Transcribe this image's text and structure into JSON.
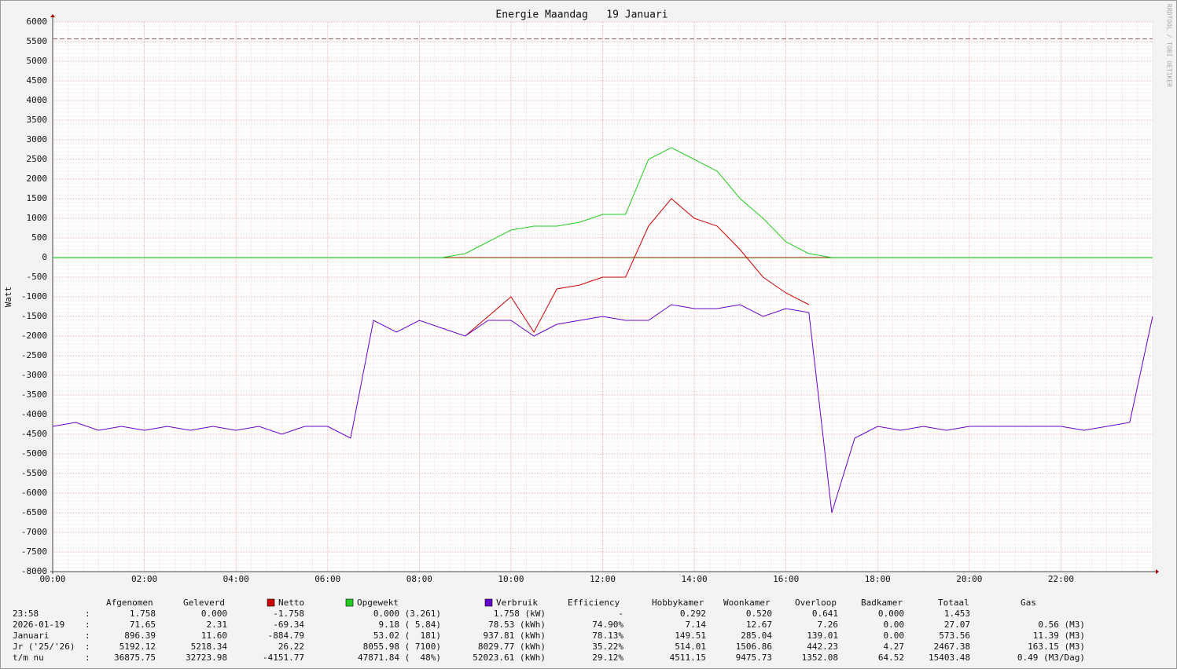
{
  "chart_data": {
    "type": "line",
    "title": "Energie Maandag   19 Januari",
    "ylabel": "Watt",
    "watermark": "RRDTOOL / TOBI OETIKER",
    "x": [
      "00:00",
      "00:30",
      "01:00",
      "01:30",
      "02:00",
      "02:30",
      "03:00",
      "03:30",
      "04:00",
      "04:30",
      "05:00",
      "05:30",
      "06:00",
      "06:30",
      "07:00",
      "07:30",
      "08:00",
      "08:30",
      "09:00",
      "09:30",
      "10:00",
      "10:30",
      "11:00",
      "11:30",
      "12:00",
      "12:30",
      "13:00",
      "13:30",
      "14:00",
      "14:30",
      "15:00",
      "15:30",
      "16:00",
      "16:30",
      "17:00",
      "17:30",
      "18:00",
      "18:30",
      "19:00",
      "19:30",
      "20:00",
      "20:30",
      "21:00",
      "21:30",
      "22:00",
      "22:30",
      "23:00",
      "23:30",
      "24:00"
    ],
    "xlim": [
      "00:00",
      "24:00"
    ],
    "xticks": [
      "00:00",
      "02:00",
      "04:00",
      "06:00",
      "08:00",
      "10:00",
      "12:00",
      "14:00",
      "16:00",
      "18:00",
      "20:00",
      "22:00"
    ],
    "minor_x_minutes": 20,
    "ylim": [
      -8000,
      6000
    ],
    "yticks": [
      -8000,
      -7500,
      -7000,
      -6500,
      -6000,
      -5500,
      -5000,
      -4500,
      -4000,
      -3500,
      -3000,
      -2500,
      -2000,
      -1500,
      -1000,
      -500,
      0,
      500,
      1000,
      1500,
      2000,
      2500,
      3000,
      3500,
      4000,
      4500,
      5000,
      5500,
      6000
    ],
    "minor_ystep": 100,
    "grid": true,
    "hlines": [
      {
        "value": 5570,
        "color": "#a06060"
      }
    ],
    "series": [
      {
        "name": "Opgewekt",
        "color": "#22cc22",
        "values": [
          0,
          0,
          0,
          0,
          0,
          0,
          0,
          0,
          0,
          0,
          0,
          0,
          0,
          0,
          0,
          0,
          0,
          0,
          100,
          400,
          700,
          800,
          800,
          900,
          1100,
          1100,
          2500,
          2800,
          2500,
          2200,
          1500,
          1000,
          400,
          100,
          0,
          0,
          0,
          0,
          0,
          0,
          0,
          0,
          0,
          0,
          0,
          0,
          0,
          0,
          0
        ]
      },
      {
        "name": "Netto",
        "color": "#cc0000",
        "values": [
          null,
          null,
          null,
          null,
          null,
          null,
          null,
          null,
          null,
          null,
          null,
          null,
          null,
          null,
          null,
          null,
          null,
          null,
          -2000,
          -1500,
          -1000,
          -1900,
          -800,
          -700,
          -500,
          -500,
          800,
          1500,
          1000,
          800,
          200,
          -500,
          -900,
          -1200,
          null,
          null,
          null,
          null,
          null,
          null,
          null,
          null,
          null,
          null,
          null,
          null,
          null,
          null,
          null
        ]
      },
      {
        "name": "Verbruik",
        "color": "#6600cc",
        "values": [
          -4300,
          -4200,
          -4400,
          -4300,
          -4400,
          -4300,
          -4400,
          -4300,
          -4400,
          -4300,
          -4500,
          -4300,
          -4300,
          -4600,
          -1600,
          -1900,
          -1600,
          -1800,
          -2000,
          -1600,
          -1600,
          -2000,
          -1700,
          -1600,
          -1500,
          -1600,
          -1600,
          -1200,
          -1300,
          -1300,
          -1200,
          -1500,
          -1300,
          -1400,
          -6500,
          -4600,
          -4300,
          -4400,
          -4300,
          -4400,
          -4300,
          -4300,
          -4300,
          -4300,
          -4300,
          -4400,
          -4300,
          -4200,
          -1500
        ]
      }
    ]
  },
  "table": {
    "headers": {
      "0": "Afgenomen",
      "1": "Geleverd",
      "5": "Efficiency",
      "6": "Hobbykamer",
      "7": "Woonkamer",
      "8": "Overloop",
      "9": "Badkamer",
      "10": "Totaal",
      "11": "Gas"
    },
    "legend_columns": {
      "2": 1,
      "3": 0,
      "4": 2
    },
    "rows": [
      [
        "23:58",
        ":",
        "1.758",
        "0.000",
        "-1.758",
        "0.000 (3.261)",
        "1.758 (kW)",
        "-",
        "0.292",
        "0.520",
        "0.641",
        "0.000",
        "1.453"
      ],
      [
        "2026-01-19",
        ":",
        "71.65",
        "2.31",
        "-69.34",
        "9.18 ( 5.84)",
        "78.53 (kWh)",
        "74.90%",
        "7.14",
        "12.67",
        "7.26",
        "0.00",
        "27.07",
        "0.56 (M3)"
      ],
      [
        "Januari",
        ":",
        "896.39",
        "11.60",
        "-884.79",
        "53.02 (  181)",
        "937.81 (kWh)",
        "78.13%",
        "149.51",
        "285.04",
        "139.01",
        "0.00",
        "573.56",
        "11.39 (M3)"
      ],
      [
        "Jr ('25/'26)",
        ":",
        "5192.12",
        "5218.34",
        "26.22",
        "8055.98 ( 7100)",
        "8029.77 (kWh)",
        "35.22%",
        "514.01",
        "1506.86",
        "442.23",
        "4.27",
        "2467.38",
        "163.15 (M3)"
      ],
      [
        "t/m nu",
        ":",
        "36875.75",
        "32723.98",
        "-4151.77",
        "47871.84 (  48%)",
        "52023.61 (kWh)",
        "29.12%",
        "4511.15",
        "9475.73",
        "1352.08",
        "64.52",
        "15403.48",
        "0.49 (M3/Dag)"
      ]
    ]
  }
}
